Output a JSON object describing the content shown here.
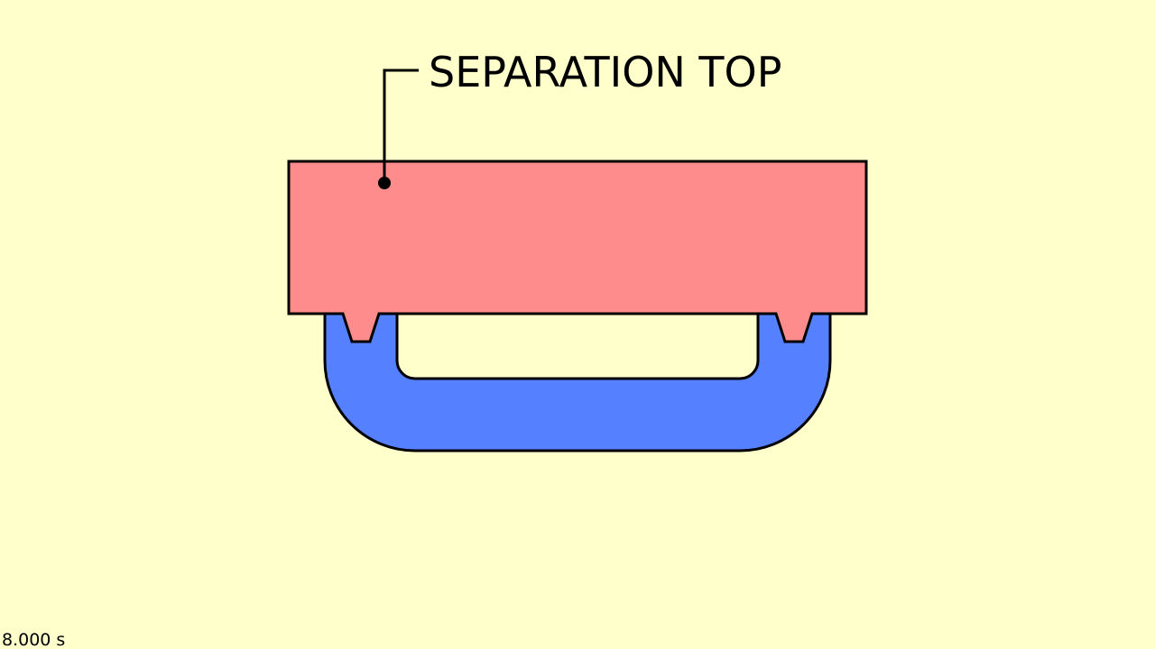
{
  "label": "SEPARATION TOP",
  "timestamp": "8.000 s"
}
